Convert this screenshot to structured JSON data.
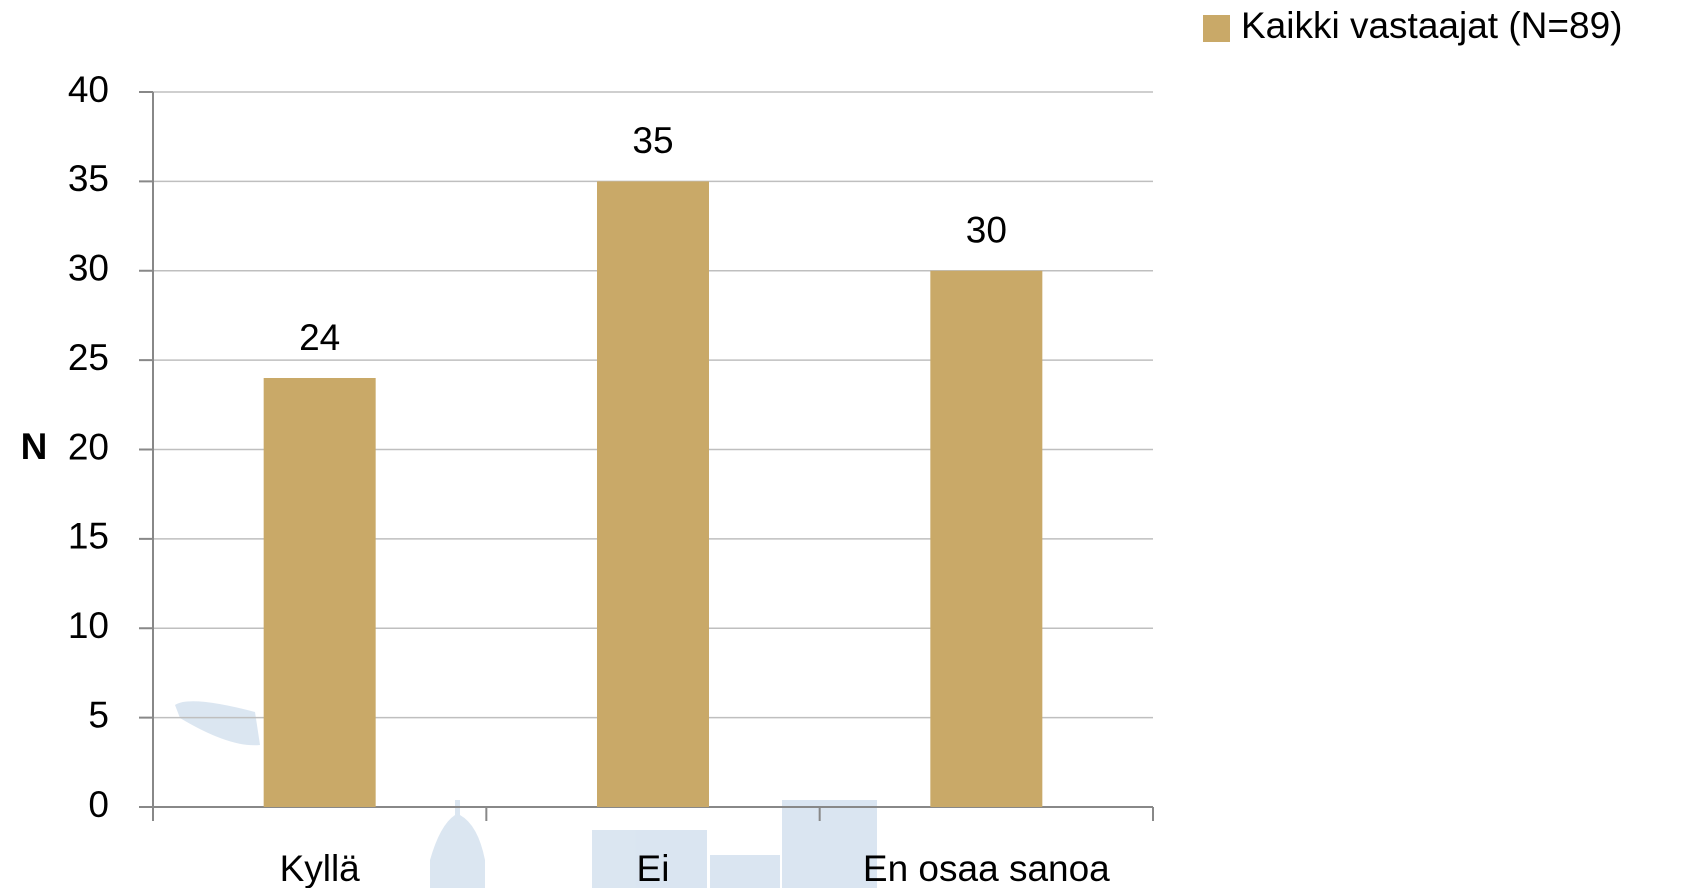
{
  "chart_data": {
    "type": "bar",
    "y_label": "N",
    "categories": [
      "Kyllä",
      "Ei",
      "En osaa sanoa"
    ],
    "series": [
      {
        "name": "Kaikki vastaajat (N=89)",
        "color": "#c9a968",
        "values": [
          24,
          35,
          30
        ]
      }
    ],
    "ylim": [
      0,
      40
    ],
    "yticks": [
      0,
      5,
      10,
      15,
      20,
      25,
      30,
      35,
      40
    ],
    "grid": true,
    "legend": "top-right"
  }
}
